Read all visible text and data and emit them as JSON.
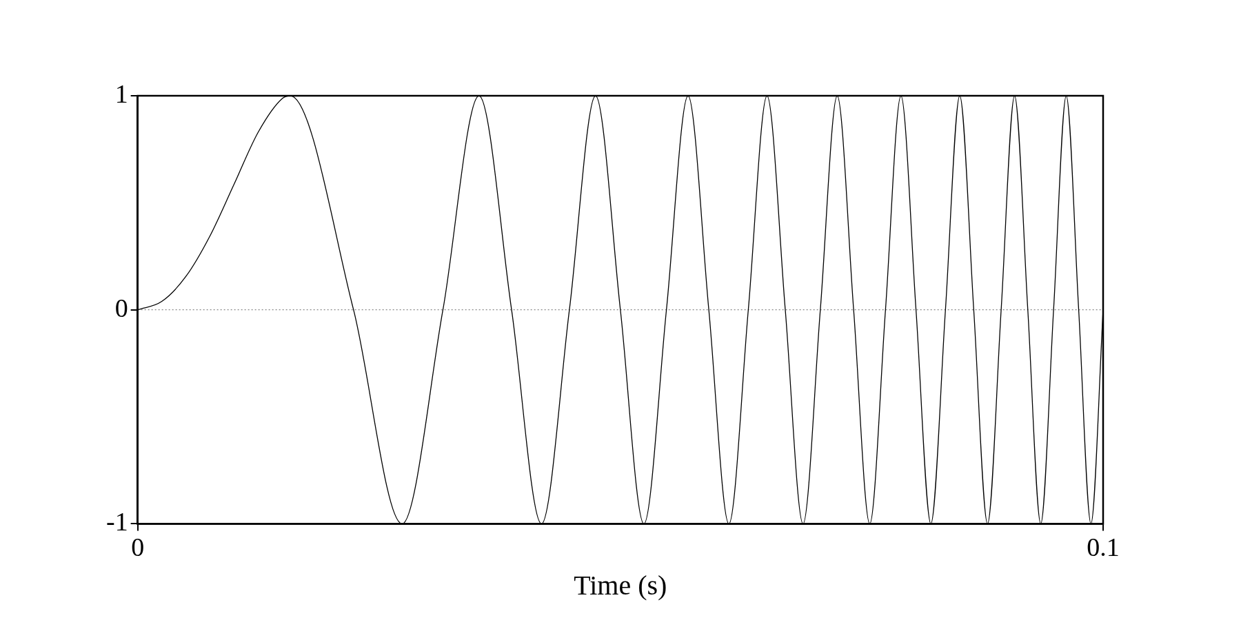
{
  "chart_data": {
    "type": "line",
    "xlabel": "Time (s)",
    "x": [
      0,
      0.0025,
      0.005,
      0.0075,
      0.01,
      0.0125,
      0.015,
      0.01581,
      0.02236,
      0.02739,
      0.03162,
      0.03536,
      0.03873,
      0.04183,
      0.04472,
      0.04743,
      0.05,
      0.05244,
      0.05477,
      0.05701,
      0.05916,
      0.06124,
      0.06325,
      0.06519,
      0.06708,
      0.06892,
      0.07071,
      0.07246,
      0.07416,
      0.07583,
      0.07746,
      0.07906,
      0.08062,
      0.08216,
      0.08367,
      0.08515,
      0.0866,
      0.08803,
      0.08944,
      0.09083,
      0.0922,
      0.09354,
      0.09487,
      0.09618,
      0.09747,
      0.09874,
      0.1
    ],
    "series": [
      {
        "color": "#000000",
        "values": [
          0,
          0.039,
          0.156,
          0.346,
          0.588,
          0.831,
          0.988,
          1,
          0,
          -1,
          0,
          1,
          0,
          -1,
          0,
          1,
          0,
          -1,
          0,
          1,
          0,
          -1,
          0,
          1,
          0,
          -1,
          0,
          1,
          0,
          -1,
          0,
          1,
          0,
          -1,
          0,
          1,
          0,
          -1,
          0,
          1,
          0,
          -1,
          0,
          1,
          0,
          -1,
          0
        ]
      }
    ],
    "xlim": [
      0,
      0.1
    ],
    "xticks": [
      0,
      0.1
    ],
    "ylim": [
      -1,
      1
    ],
    "yticks": [
      -1,
      0,
      1
    ],
    "ref_lines": [
      {
        "axis": "y",
        "value": 0,
        "color": "#888888",
        "line_style": "dotted"
      }
    ],
    "grid": false,
    "legend": false,
    "marker": "none",
    "line_style": "solid"
  }
}
